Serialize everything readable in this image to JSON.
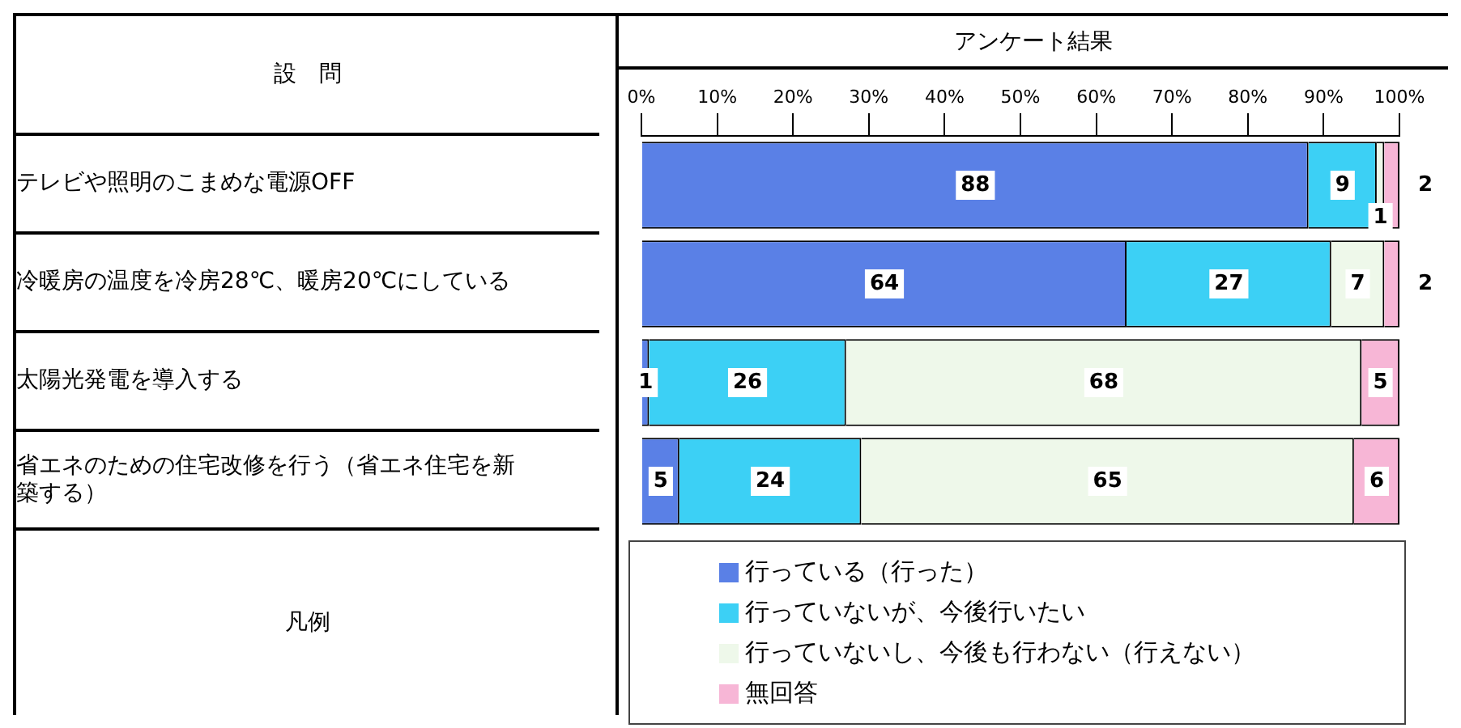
{
  "chart_data": {
    "type": "bar",
    "orientation": "horizontal",
    "stacked": true,
    "title": "アンケート結果",
    "annotations": [
      "設　問",
      "凡例"
    ],
    "categories": [
      "テレビや照明のこまめな電源OFF",
      "冷暖房の温度を冷房28℃、暖房20℃にしている",
      "太陽光発電を導入する",
      "省エネのための住宅改修を行う（省エネ住宅を新築する）"
    ],
    "series": [
      {
        "name": "行っている（行った）",
        "color": "#5a80e6",
        "values": [
          88,
          64,
          1,
          5
        ]
      },
      {
        "name": "行っていないが、今後行いたい",
        "color": "#3cd0f5",
        "values": [
          9,
          27,
          26,
          24
        ]
      },
      {
        "name": "行っていないし、今後も行わない（行えない）",
        "color": "#eef8ea",
        "values": [
          1,
          7,
          68,
          65
        ]
      },
      {
        "name": "無回答",
        "color": "#f7b6d6",
        "values": [
          2,
          2,
          5,
          6
        ]
      }
    ],
    "xlim": [
      0,
      100
    ],
    "xticks": [
      {
        "value": 0,
        "label": "0%"
      },
      {
        "value": 10,
        "label": "10%"
      },
      {
        "value": 20,
        "label": "20%"
      },
      {
        "value": 30,
        "label": "30%"
      },
      {
        "value": 40,
        "label": "40%"
      },
      {
        "value": 50,
        "label": "50%"
      },
      {
        "value": 60,
        "label": "60%"
      },
      {
        "value": 70,
        "label": "70%"
      },
      {
        "value": 80,
        "label": "80%"
      },
      {
        "value": 90,
        "label": "90%"
      },
      {
        "value": 100,
        "label": "100%"
      }
    ],
    "data_labels": true,
    "grid": false,
    "legend": "bottom"
  }
}
